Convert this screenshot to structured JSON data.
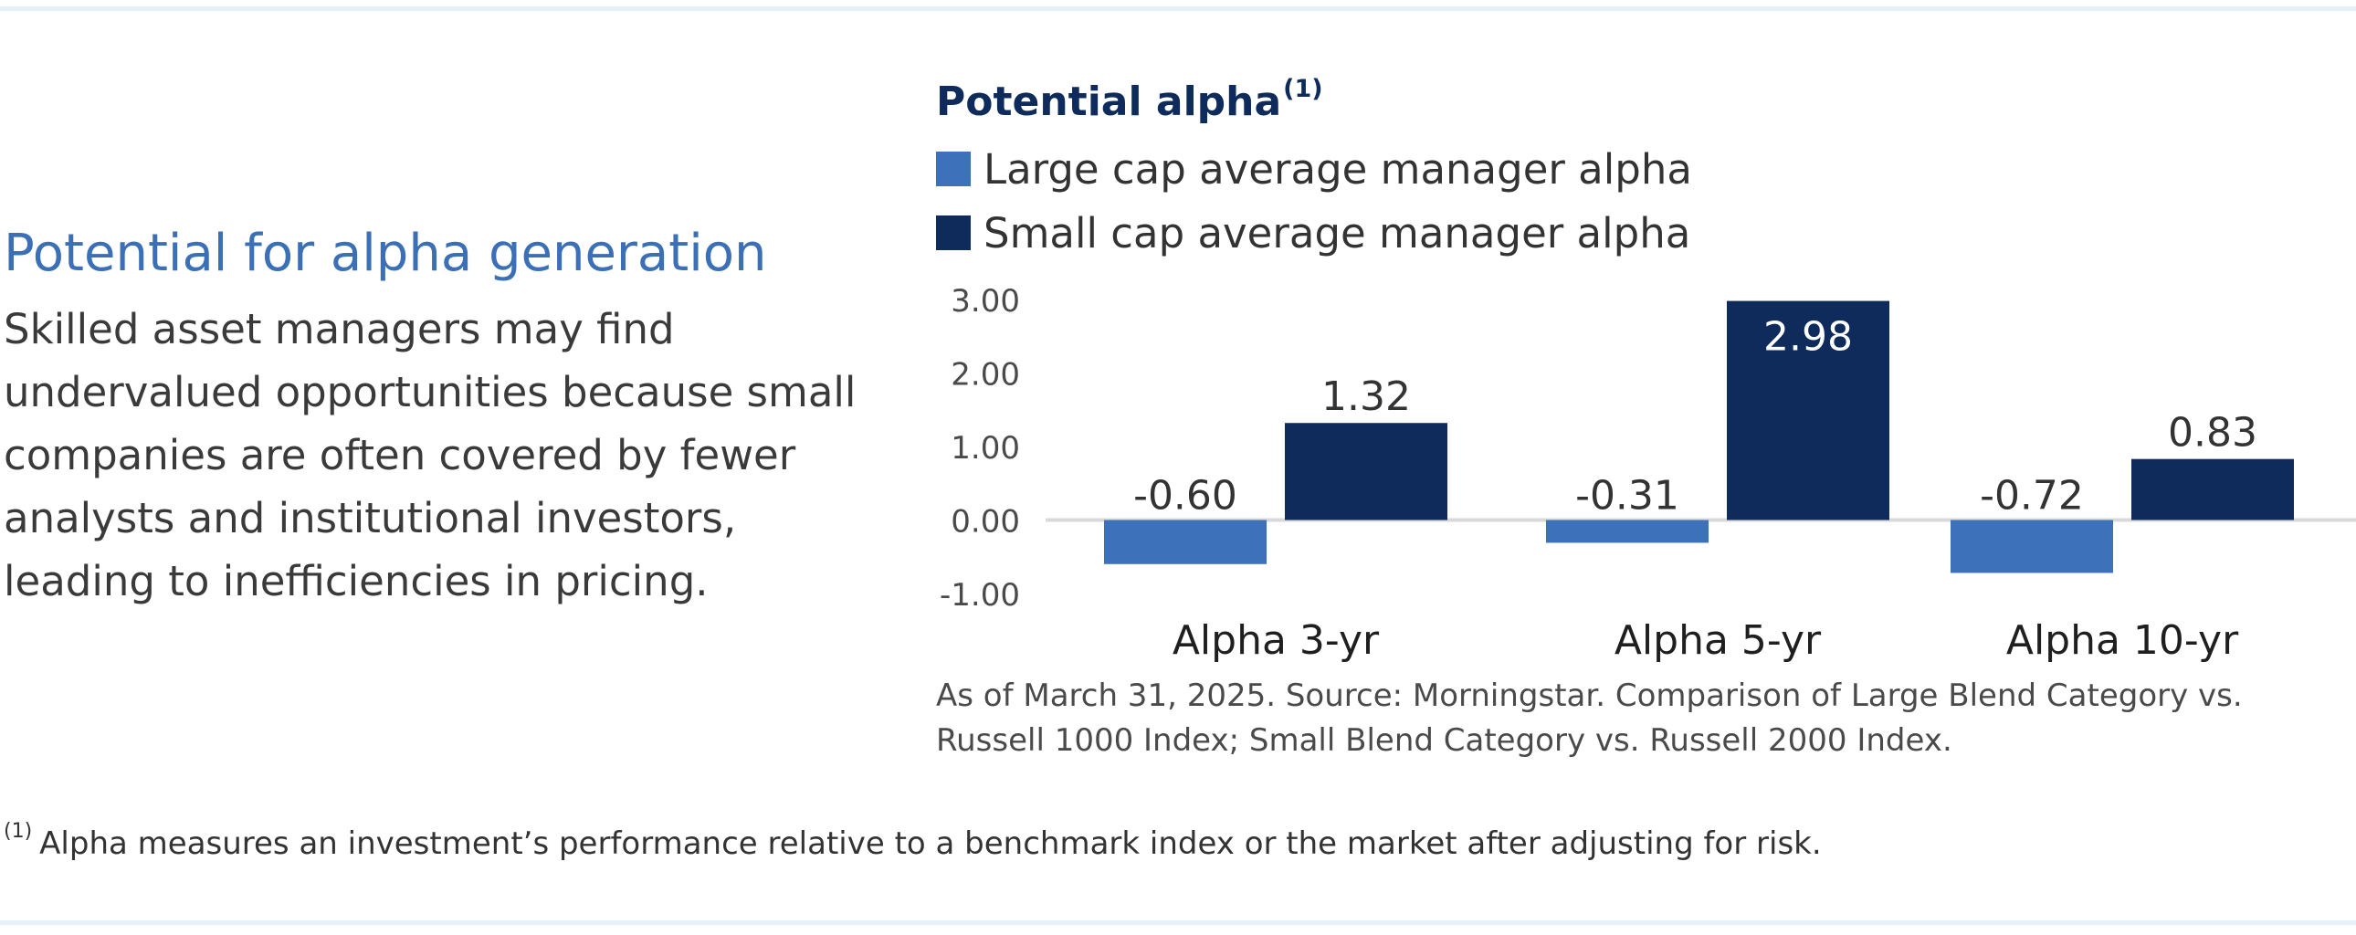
{
  "section": {
    "title": "Potential for alpha generation",
    "body": "Skilled asset managers may find undervalued opportunities because small companies are often covered by fewer analysts and institutional investors, leading to inefficiencies in pricing."
  },
  "chart_data": {
    "type": "bar",
    "title": "Potential alpha",
    "title_sup": "(1)",
    "categories": [
      "Alpha 3-yr",
      "Alpha 5-yr",
      "Alpha 10-yr"
    ],
    "series": [
      {
        "name": "Large cap average manager alpha",
        "color": "#3d72bb",
        "values": [
          -0.6,
          -0.31,
          -0.72
        ]
      },
      {
        "name": "Small cap average manager alpha",
        "color": "#0f2b5b",
        "values": [
          1.32,
          2.98,
          0.83
        ]
      }
    ],
    "data_labels": [
      [
        "-0.60",
        "-0.31",
        "-0.72"
      ],
      [
        "1.32",
        "2.98",
        "0.83"
      ]
    ],
    "y_ticks": [
      "3.00",
      "2.00",
      "1.00",
      "0.00",
      "-1.00"
    ],
    "ylim": [
      -1,
      3
    ],
    "xlabel": "",
    "ylabel": "",
    "grid": false,
    "legend": "top-left"
  },
  "source": "As of March 31, 2025. Source: Morningstar. Comparison of Large Blend Category vs. Russell 1000 Index; Small Blend Category vs. Russell 2000 Index.",
  "footnote": {
    "marker": "(1)",
    "text": "Alpha measures an investment’s performance relative to a benchmark index or the market after adjusting for risk."
  }
}
